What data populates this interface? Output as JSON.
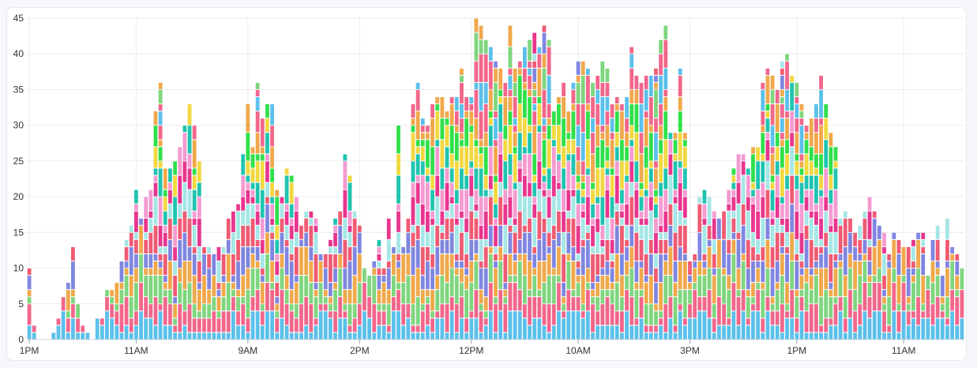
{
  "chart_data": {
    "type": "bar",
    "stacked": true,
    "grid": true,
    "ylim": [
      0,
      45
    ],
    "yticks": [
      0,
      5,
      10,
      15,
      20,
      25,
      30,
      35,
      40,
      45
    ],
    "xlabels": [
      {
        "index": 0,
        "label": "1PM"
      },
      {
        "index": 22,
        "label": "11AM"
      },
      {
        "index": 45,
        "label": "9AM"
      },
      {
        "index": 68,
        "label": "2PM"
      },
      {
        "index": 91,
        "label": "12PM"
      },
      {
        "index": 113,
        "label": "10AM"
      },
      {
        "index": 136,
        "label": "3PM"
      },
      {
        "index": 158,
        "label": "1PM"
      },
      {
        "index": 180,
        "label": "11AM"
      }
    ],
    "series_colors": [
      "#5bc0eb",
      "#f2668b",
      "#7ed67e",
      "#f0a84a",
      "#7f86e0",
      "#ef5b73",
      "#a5e6e6",
      "#e8368f",
      "#f59ad0",
      "#1fc4b0",
      "#f1d83f",
      "#2fe04a",
      "#f0a84a",
      "#f2668b"
    ],
    "totals": [
      10,
      2,
      0,
      0,
      0,
      1,
      3,
      6,
      8,
      13,
      5,
      2,
      1,
      0,
      3,
      3,
      7,
      7,
      8,
      11,
      14,
      16,
      21,
      17,
      20,
      21,
      32,
      36,
      24,
      24,
      25,
      27,
      30,
      33,
      30,
      25,
      13,
      13,
      12,
      13,
      13,
      17,
      18,
      19,
      26,
      33,
      27,
      36,
      31,
      33,
      33,
      21,
      20,
      24,
      23,
      20,
      16,
      18,
      18,
      17,
      12,
      12,
      14,
      17,
      18,
      26,
      23,
      18,
      16,
      10,
      9,
      11,
      14,
      10,
      17,
      13,
      30,
      13,
      17,
      33,
      36,
      31,
      30,
      33,
      34,
      34,
      32,
      34,
      34,
      38,
      34,
      34,
      45,
      44,
      42,
      41,
      39,
      38,
      36,
      44,
      38,
      39,
      41,
      42,
      43,
      41,
      44,
      42,
      32,
      34,
      36,
      32,
      36,
      39,
      39,
      38,
      36,
      37,
      39,
      38,
      33,
      34,
      33,
      34,
      41,
      37,
      36,
      37,
      37,
      38,
      42,
      44,
      29,
      29,
      38,
      29,
      11,
      12,
      20,
      21,
      20,
      18,
      17,
      18,
      21,
      24,
      26,
      26,
      24,
      27,
      27,
      36,
      38,
      37,
      35,
      39,
      40,
      37,
      36,
      33,
      30,
      31,
      33,
      37,
      33,
      29,
      27,
      17,
      18,
      17,
      15,
      16,
      18,
      20,
      18,
      16,
      15,
      12,
      15,
      14,
      13,
      13,
      14,
      15,
      15,
      9,
      14,
      16,
      9,
      17,
      13,
      12,
      10
    ],
    "overall_max": 45
  }
}
